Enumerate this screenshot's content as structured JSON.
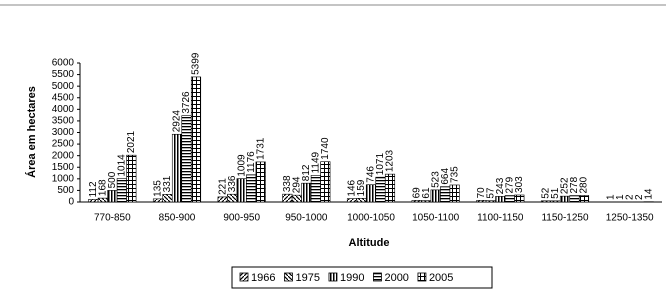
{
  "chart_data": {
    "type": "bar",
    "xlabel": "Altitude",
    "ylabel": "Área em hectares",
    "categories": [
      "770-850",
      "850-900",
      "900-950",
      "950-1000",
      "1000-1050",
      "1050-1100",
      "1100-1150",
      "1150-1250",
      "1250-1350"
    ],
    "series": [
      {
        "name": "1966",
        "color": "#000000",
        "values": [
          112,
          135,
          221,
          338,
          146,
          69,
          70,
          52,
          1
        ]
      },
      {
        "name": "1975",
        "color": "#000000",
        "values": [
          168,
          331,
          336,
          294,
          159,
          61,
          57,
          51,
          1
        ]
      },
      {
        "name": "1990",
        "color": "#000000",
        "values": [
          500,
          2924,
          1009,
          812,
          746,
          523,
          243,
          252,
          2
        ]
      },
      {
        "name": "2000",
        "color": "#000000",
        "values": [
          1014,
          3726,
          1176,
          1149,
          1071,
          664,
          279,
          278,
          2
        ]
      },
      {
        "name": "2005",
        "color": "#000000",
        "values": [
          2021,
          5399,
          1731,
          1740,
          1203,
          735,
          303,
          280,
          14
        ]
      }
    ],
    "ylim": [
      0,
      6000
    ],
    "yticks": [
      0,
      500,
      1000,
      1500,
      2000,
      2500,
      3000,
      3500,
      4000,
      4500,
      5000,
      5500,
      6000
    ],
    "grid": false,
    "legend": "bottom"
  }
}
